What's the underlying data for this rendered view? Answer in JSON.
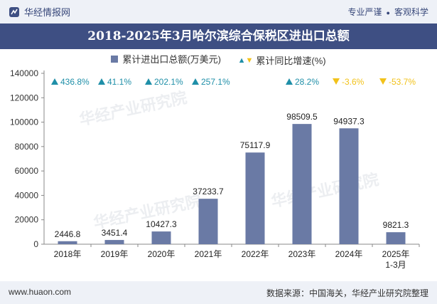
{
  "header": {
    "brand": "华经情报网",
    "tags": [
      "专业严谨",
      "客观科学"
    ]
  },
  "footer": {
    "website": "www.huaon.com",
    "source": "数据来源：中国海关，华经产业研究院整理"
  },
  "watermarks": [
    "华经产业研究院",
    "www.huaon.com"
  ],
  "colors": {
    "bar": "#6a7aa5",
    "up": "#1f8fa8",
    "down": "#f2c21a",
    "title_bg": "#3e4f83"
  },
  "chart_data": {
    "type": "bar",
    "title": "2018-2025年3月哈尔滨综合保税区进出口总额",
    "categories": [
      "2018年",
      "2019年",
      "2020年",
      "2021年",
      "2022年",
      "2023年",
      "2024年",
      "2025年\n1-3月"
    ],
    "series": [
      {
        "name": "累计进出口总额(万美元)",
        "values": [
          2446.8,
          3451.4,
          10427.3,
          37233.7,
          75117.9,
          98509.5,
          94937.3,
          9821.3
        ],
        "labels": [
          "2446.8",
          "3451.4",
          "10427.3",
          "37233.7",
          "75117.9",
          "98509.5",
          "94937.3",
          "9821.3"
        ]
      },
      {
        "name": "累计同比增速(%)",
        "values": [
          436.8,
          41.1,
          202.1,
          257.1,
          null,
          28.2,
          -3.6,
          -53.7
        ],
        "labels": [
          "436.8%",
          "41.1%",
          "202.1%",
          "257.1%",
          "",
          "28.2%",
          "-3.6%",
          "-53.7%"
        ]
      }
    ],
    "ylim": [
      0,
      140000
    ],
    "yticks": [
      0,
      20000,
      40000,
      60000,
      80000,
      100000,
      120000,
      140000
    ],
    "legend": "top-center",
    "grid": false
  }
}
